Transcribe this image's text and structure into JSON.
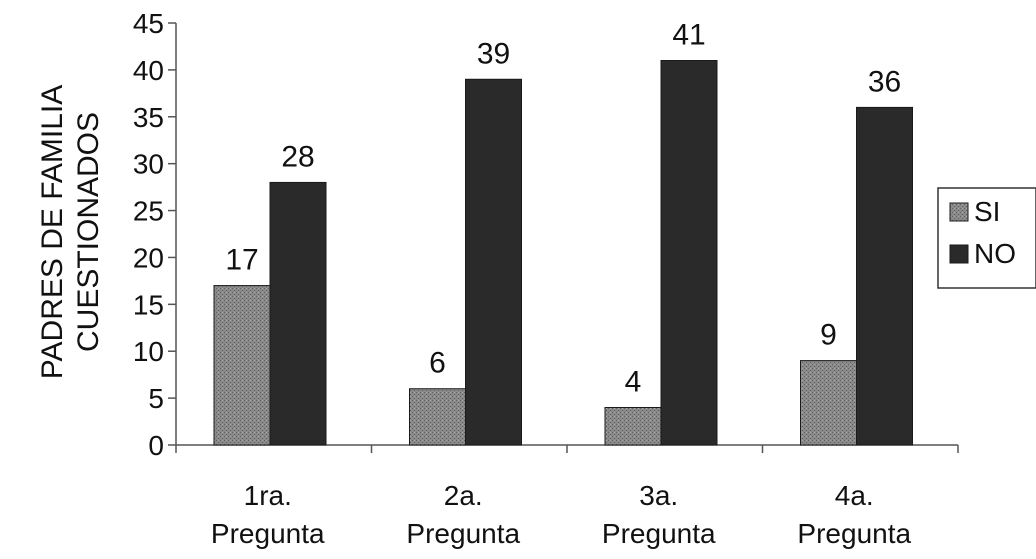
{
  "chart_data": {
    "type": "bar",
    "title": "",
    "xlabel": "",
    "ylabel_lines": [
      "PADRES DE FAMILIA",
      "CUESTIONADOS"
    ],
    "categories": [
      [
        "1ra.",
        "Pregunta"
      ],
      [
        "2a.",
        "Pregunta"
      ],
      [
        "3a.",
        "Pregunta"
      ],
      [
        "4a.",
        "Pregunta"
      ]
    ],
    "series": [
      {
        "name": "SI",
        "values": [
          17,
          6,
          4,
          9
        ],
        "color": "#7a7a7a"
      },
      {
        "name": "NO",
        "values": [
          28,
          39,
          41,
          36
        ],
        "color": "#2a2a2a"
      }
    ],
    "ylim": [
      0,
      45
    ],
    "yticks": [
      0,
      5,
      10,
      15,
      20,
      25,
      30,
      35,
      40,
      45
    ],
    "grid": false,
    "legend_position": "right",
    "data_labels": true
  }
}
